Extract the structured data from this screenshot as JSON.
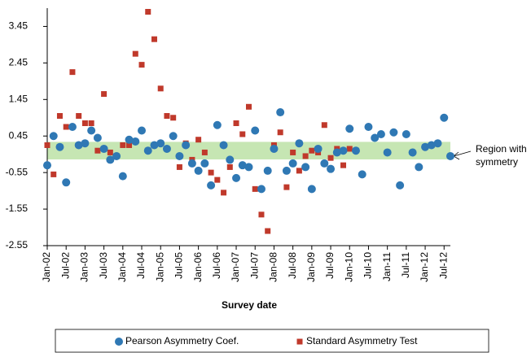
{
  "chart_data": {
    "type": "scatter",
    "x_label": "Survey date",
    "annotation": [
      "Region with",
      "symmetry"
    ],
    "band": [
      -0.19,
      0.29
    ],
    "band_color": "#c6e6b3",
    "xlim": [
      "2002-01",
      "2012-09"
    ],
    "ylim": [
      -2.55,
      3.95
    ],
    "yticks": [
      -2.55,
      -1.55,
      -0.55,
      0.45,
      1.45,
      2.45,
      3.45
    ],
    "xticks": [
      {
        "value": "2002-01",
        "label": "Jan-02"
      },
      {
        "value": "2002-07",
        "label": "Jul-02"
      },
      {
        "value": "2003-01",
        "label": "Jan-03"
      },
      {
        "value": "2003-07",
        "label": "Jul-03"
      },
      {
        "value": "2004-01",
        "label": "Jan-04"
      },
      {
        "value": "2004-07",
        "label": "Jul-04"
      },
      {
        "value": "2005-01",
        "label": "Jan-05"
      },
      {
        "value": "2005-07",
        "label": "Jul-05"
      },
      {
        "value": "2006-01",
        "label": "Jan-06"
      },
      {
        "value": "2006-07",
        "label": "Jul-06"
      },
      {
        "value": "2007-01",
        "label": "Jan-07"
      },
      {
        "value": "2007-07",
        "label": "Jul-07"
      },
      {
        "value": "2008-01",
        "label": "Jan-08"
      },
      {
        "value": "2008-07",
        "label": "Jul-08"
      },
      {
        "value": "2009-01",
        "label": "Jan-09"
      },
      {
        "value": "2009-07",
        "label": "Jul-09"
      },
      {
        "value": "2010-01",
        "label": "Jan-10"
      },
      {
        "value": "2010-07",
        "label": "Jul-10"
      },
      {
        "value": "2011-01",
        "label": "Jan-11"
      },
      {
        "value": "2011-07",
        "label": "Jul-11"
      },
      {
        "value": "2012-01",
        "label": "Jan-12"
      },
      {
        "value": "2012-07",
        "label": "Jul-12"
      }
    ],
    "x": [
      "2002-01",
      "2002-03",
      "2002-05",
      "2002-07",
      "2002-09",
      "2002-11",
      "2003-01",
      "2003-03",
      "2003-05",
      "2003-07",
      "2003-09",
      "2003-11",
      "2004-01",
      "2004-03",
      "2004-05",
      "2004-07",
      "2004-09",
      "2004-11",
      "2005-01",
      "2005-03",
      "2005-05",
      "2005-07",
      "2005-09",
      "2005-11",
      "2006-01",
      "2006-03",
      "2006-05",
      "2006-07",
      "2006-09",
      "2006-11",
      "2007-01",
      "2007-03",
      "2007-05",
      "2007-07",
      "2007-09",
      "2007-11",
      "2008-01",
      "2008-03",
      "2008-05",
      "2008-07",
      "2008-09",
      "2008-11",
      "2009-01",
      "2009-03",
      "2009-05",
      "2009-07",
      "2009-09",
      "2009-11",
      "2010-01",
      "2010-03",
      "2010-05",
      "2010-07",
      "2010-09",
      "2010-11",
      "2011-01",
      "2011-03",
      "2011-05",
      "2011-07",
      "2011-09",
      "2011-11",
      "2012-01",
      "2012-03",
      "2012-05",
      "2012-07",
      "2012-09"
    ],
    "series": [
      {
        "name": "Standard Asymmetry Test",
        "color": "#c0392b",
        "marker": "square",
        "values": [
          0.2,
          -0.6,
          1.0,
          0.7,
          2.2,
          1.0,
          0.8,
          0.8,
          0.05,
          1.6,
          0.0,
          -0.1,
          0.2,
          0.2,
          2.7,
          2.4,
          3.85,
          3.1,
          1.75,
          1.0,
          0.95,
          -0.4,
          0.25,
          -0.2,
          0.35,
          0.0,
          -0.55,
          -0.75,
          -1.1,
          -0.4,
          0.8,
          0.5,
          1.25,
          -1.0,
          -1.7,
          -2.15,
          0.2,
          0.55,
          -0.95,
          0.0,
          -0.5,
          -0.1,
          0.05,
          0.0,
          0.75,
          -0.15,
          0.1,
          -0.35,
          0.1,
          null,
          null,
          null,
          null,
          null,
          null,
          null,
          null,
          null,
          null,
          null,
          null,
          null,
          null,
          null,
          null
        ]
      },
      {
        "name": "Pearson Asymmetry Coef.",
        "color": "#2f78b4",
        "marker": "circle",
        "values": [
          -0.35,
          0.45,
          0.15,
          -0.82,
          0.7,
          0.2,
          0.25,
          0.6,
          0.4,
          0.1,
          -0.2,
          -0.1,
          -0.65,
          0.35,
          0.3,
          0.6,
          0.05,
          0.2,
          0.25,
          0.1,
          0.45,
          -0.1,
          0.2,
          -0.3,
          -0.5,
          -0.3,
          -0.9,
          0.75,
          0.2,
          -0.2,
          -0.7,
          -0.35,
          -0.4,
          0.6,
          -1.0,
          -0.5,
          0.1,
          1.1,
          -0.5,
          -0.3,
          0.25,
          -0.4,
          -1.0,
          0.1,
          -0.3,
          -0.45,
          0.0,
          0.05,
          0.65,
          0.05,
          -0.6,
          0.7,
          0.4,
          0.5,
          0.0,
          0.55,
          -0.9,
          0.5,
          0.0,
          -0.4,
          0.15,
          0.2,
          0.25,
          0.95,
          -0.1
        ]
      }
    ],
    "legend_order": [
      1,
      0
    ]
  }
}
